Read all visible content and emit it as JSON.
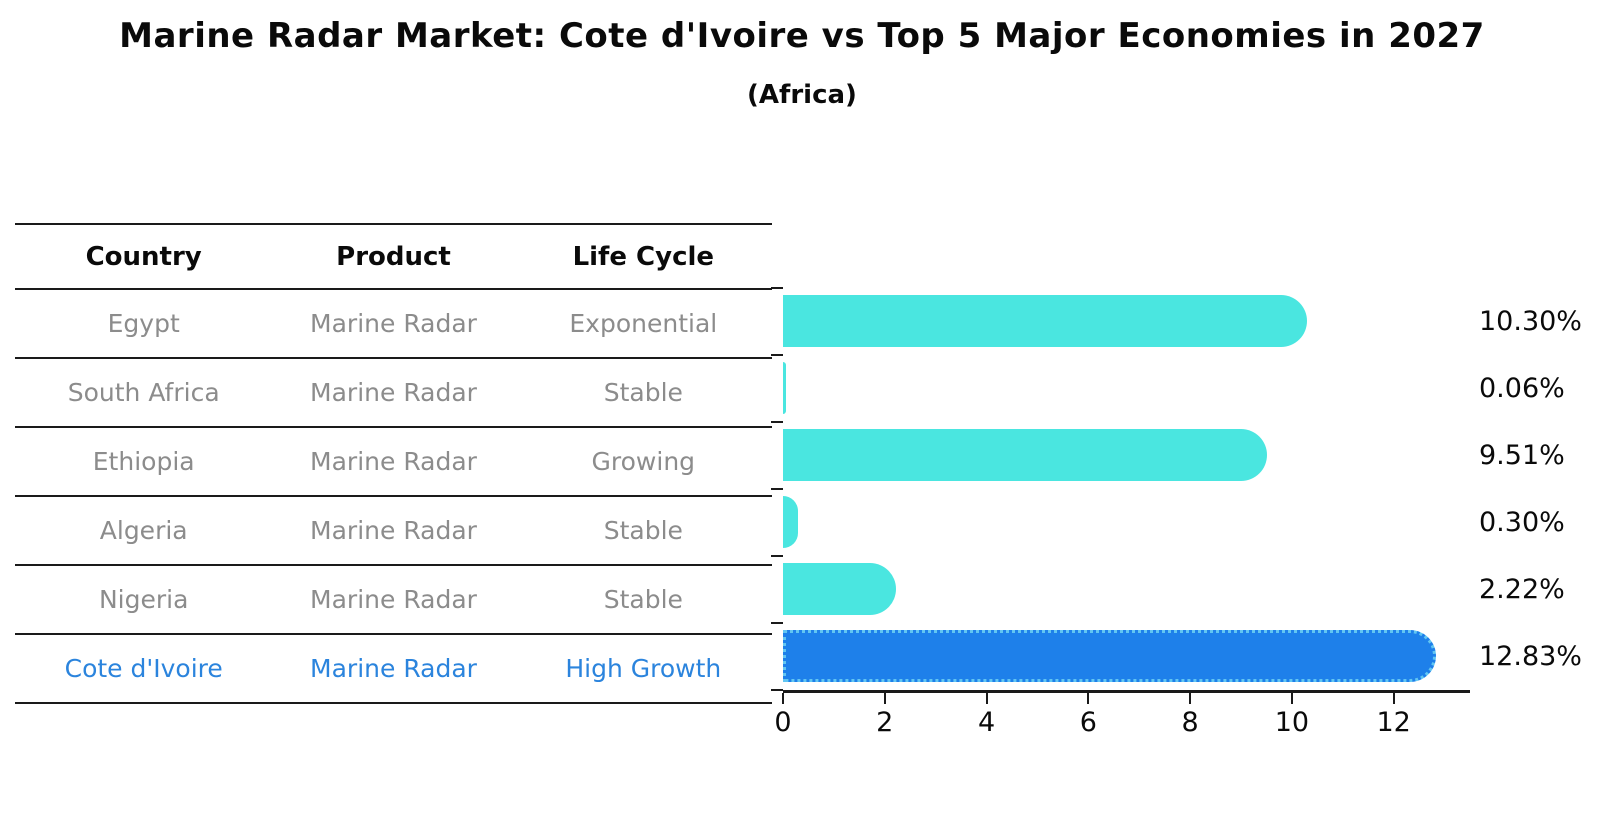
{
  "title": "Marine Radar Market: Cote d'Ivoire vs Top 5 Major Economies in 2027",
  "subtitle": "(Africa)",
  "table": {
    "headers": [
      "Country",
      "Product",
      "Life Cycle"
    ],
    "rows": [
      {
        "country": "Egypt",
        "product": "Marine Radar",
        "life_cycle": "Exponential",
        "highlight": false
      },
      {
        "country": "South Africa",
        "product": "Marine Radar",
        "life_cycle": "Stable",
        "highlight": false
      },
      {
        "country": "Ethiopia",
        "product": "Marine Radar",
        "life_cycle": "Growing",
        "highlight": false
      },
      {
        "country": "Algeria",
        "product": "Marine Radar",
        "life_cycle": "Stable",
        "highlight": false
      },
      {
        "country": "Nigeria",
        "product": "Marine Radar",
        "life_cycle": "Stable",
        "highlight": false
      },
      {
        "country": "Cote d'Ivoire",
        "product": "Marine Radar",
        "life_cycle": "High Growth",
        "highlight": true
      }
    ]
  },
  "chart_data": {
    "type": "bar",
    "orientation": "horizontal",
    "title": "Marine Radar Market: Cote d'Ivoire vs Top 5 Major Economies in 2027 (Africa)",
    "categories": [
      "Egypt",
      "South Africa",
      "Ethiopia",
      "Algeria",
      "Nigeria",
      "Cote d'Ivoire"
    ],
    "values": [
      10.3,
      0.06,
      9.51,
      0.3,
      2.22,
      12.83
    ],
    "labels": [
      "10.30%",
      "0.06%",
      "9.51%",
      "0.30%",
      "2.22%",
      "12.83%"
    ],
    "highlight_index": 5,
    "x_ticks": [
      0,
      2,
      4,
      6,
      8,
      10,
      12
    ],
    "xlim": [
      0,
      13.5
    ],
    "xlabel": "",
    "ylabel": "",
    "grid": false,
    "legend": false
  },
  "colors": {
    "bar": "#4ae6e0",
    "highlight_bar": "#1e80ea",
    "highlight_edge": "#62c6f2",
    "highlight_text": "#2b84dd",
    "muted_text": "#8c8c8c",
    "line": "#1a1a1a"
  }
}
